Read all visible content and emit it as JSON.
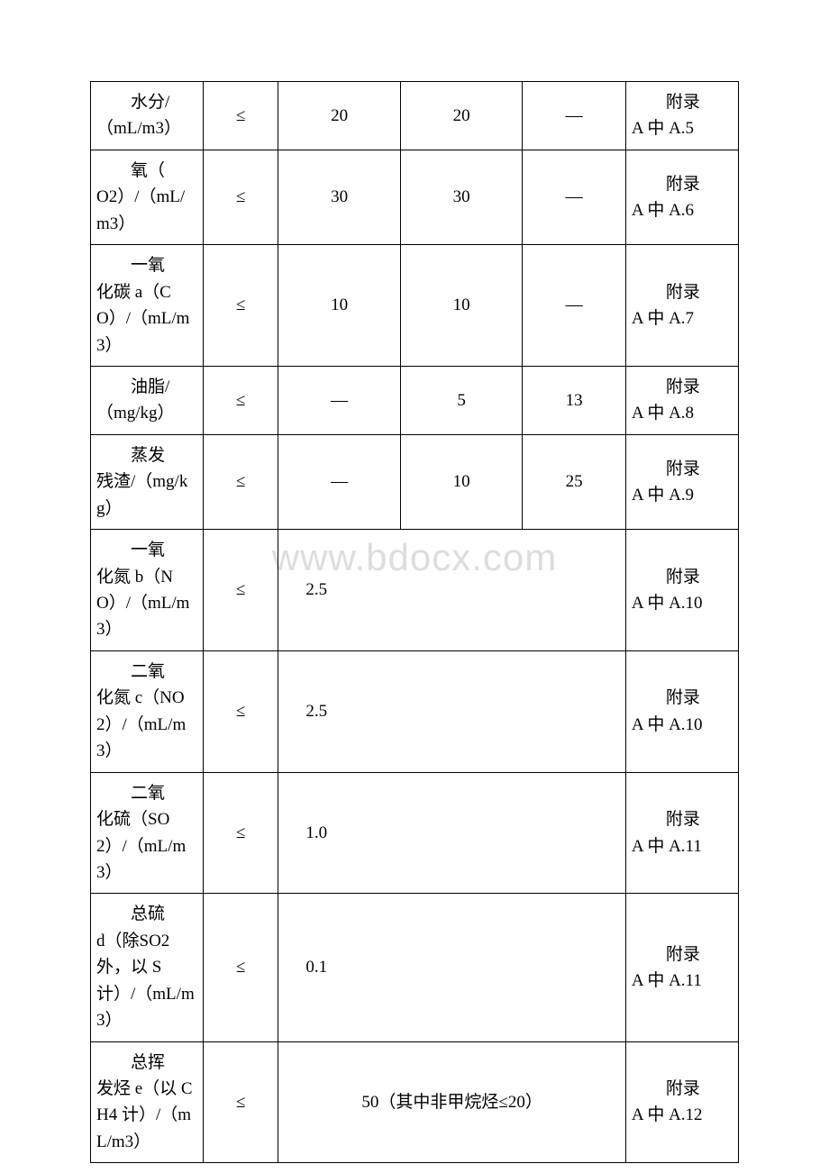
{
  "watermark": "www.bdocx.com",
  "rows": [
    {
      "param_indent": "水分/",
      "param_rest": "（mL/m3）",
      "op": "≤",
      "v1": "20",
      "v2": "20",
      "v3": "—",
      "ref_indent": "附录",
      "ref_rest": "A 中 A.5",
      "span": false
    },
    {
      "param_indent": "氧（",
      "param_rest": "O2）/（mL/m3）",
      "op": "≤",
      "v1": "30",
      "v2": "30",
      "v3": "—",
      "ref_indent": "附录",
      "ref_rest": "A 中 A.6",
      "span": false
    },
    {
      "param_indent": "一氧",
      "param_rest": "化碳 a（CO）/（mL/m3）",
      "op": "≤",
      "v1": "10",
      "v2": "10",
      "v3": "—",
      "ref_indent": "附录",
      "ref_rest": "A 中 A.7",
      "span": false
    },
    {
      "param_indent": "油脂/",
      "param_rest": "（mg/kg）",
      "op": "≤",
      "v1": "—",
      "v2": "5",
      "v3": "13",
      "ref_indent": "附录",
      "ref_rest": "A 中 A.8",
      "span": false
    },
    {
      "param_indent": "蒸发",
      "param_rest": "残渣/（mg/kg）",
      "op": "≤",
      "v1": "—",
      "v2": "10",
      "v3": "25",
      "ref_indent": "附录",
      "ref_rest": "A 中 A.9",
      "span": false
    },
    {
      "param_indent": "一氧",
      "param_rest": "化氮 b（NO）/（mL/m3）",
      "op": "≤",
      "merged": "2.5",
      "ref_indent": "附录",
      "ref_rest": "A 中 A.10",
      "span": true
    },
    {
      "param_indent": "二氧",
      "param_rest": "化氮 c（NO2）/（mL/m3）",
      "op": "≤",
      "merged": "2.5",
      "ref_indent": "附录",
      "ref_rest": "A 中 A.10",
      "span": true
    },
    {
      "param_indent": "二氧",
      "param_rest": "化硫（SO2）/（mL/m3）",
      "op": "≤",
      "merged": "1.0",
      "ref_indent": "附录",
      "ref_rest": "A 中 A.11",
      "span": true
    },
    {
      "param_indent": "总硫",
      "param_rest": "d（除SO2 外，以 S 计）/（mL/m3）",
      "op": "≤",
      "merged": "0.1",
      "ref_indent": "附录",
      "ref_rest": "A 中 A.11",
      "span": true
    },
    {
      "param_indent": "总挥",
      "param_rest": "发烃 e（以 CH4 计）/（mL/m3）",
      "op": "≤",
      "merged": "50（其中非甲烷烃≤20）",
      "merged_center": true,
      "ref_indent": "附录",
      "ref_rest": "A 中 A.12",
      "span": true
    }
  ]
}
